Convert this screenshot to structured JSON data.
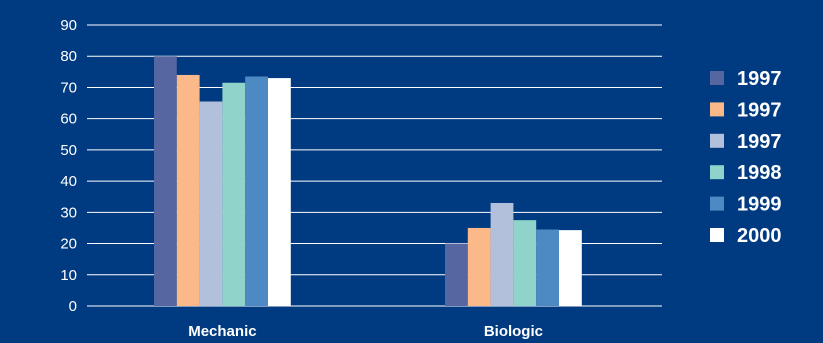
{
  "chart_data": {
    "type": "bar",
    "categories": [
      "Mechanic",
      "Biologic"
    ],
    "series": [
      {
        "name": "1997",
        "values": [
          80,
          20
        ],
        "color": "#5566a0"
      },
      {
        "name": "1997",
        "values": [
          74,
          25
        ],
        "color": "#fbb98a"
      },
      {
        "name": "1997",
        "values": [
          65.5,
          33
        ],
        "color": "#b2c0dc"
      },
      {
        "name": "1998",
        "values": [
          71.5,
          27.5
        ],
        "color": "#8fd3cb"
      },
      {
        "name": "1999",
        "values": [
          73.5,
          24.5
        ],
        "color": "#4d8ac3"
      },
      {
        "name": "2000",
        "values": [
          73,
          24.3
        ],
        "color": "#ffffff"
      }
    ],
    "yticks": [
      "0",
      "10",
      "20",
      "30",
      "40",
      "50",
      "60",
      "70",
      "80",
      "90"
    ],
    "ylim": [
      0,
      90
    ],
    "grid": true,
    "legend": "right",
    "title": "",
    "xlabel": "",
    "ylabel": ""
  }
}
